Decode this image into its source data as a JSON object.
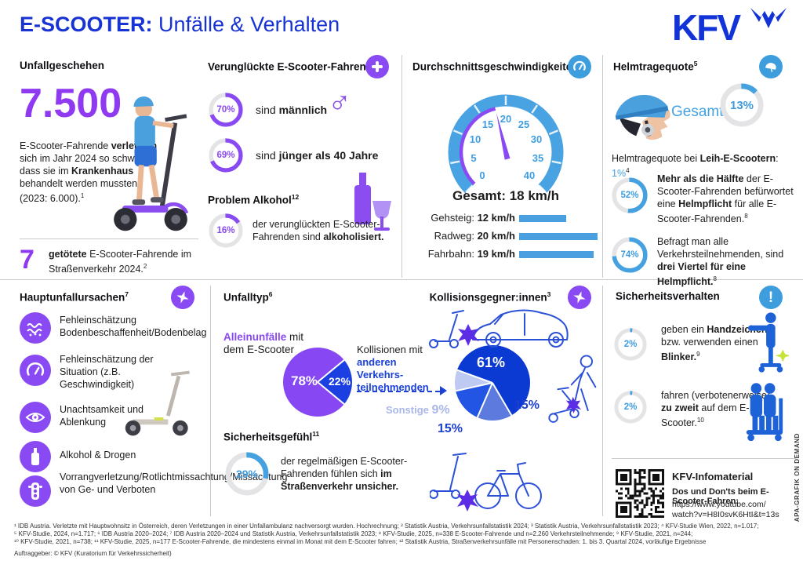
{
  "header": {
    "title_strong": "E-SCOOTER:",
    "title_rest": " Unfälle & Verhalten",
    "logo": "KFV"
  },
  "colors": {
    "brand_blue": "#1733d4",
    "accent_purple": "#8a4af3",
    "accent_sky": "#45a1e0",
    "pie_dark_blue": "#0b3ad2",
    "pie_slate": "#5d7ade",
    "pie_royal": "#2355e4",
    "pie_light": "#bfcaf2"
  },
  "unfallgeschehen": {
    "heading": "Unfallgeschehen",
    "big_number": "7.500",
    "p1": {
      "t1": "E-Scooter-Fahrende ",
      "b1": "verletzten",
      "t2": " sich im Jahr 2024 so schwer, dass sie im ",
      "b2": "Krankenhaus",
      "t3": " behandelt werden mussten (2023: 6.000).",
      "sup": "1"
    },
    "killed": {
      "number": "7",
      "b1": "getötete",
      "t1": " E-Scooter-Fahrende im Straßenverkehr 2024.",
      "sup": "2"
    }
  },
  "verunglueckte": {
    "heading": "Verunglückte E-Scooter-Fahrende",
    "sup": "3",
    "stat_male": {
      "value": 70,
      "label": "70%",
      "t1": "sind ",
      "b1": "männlich"
    },
    "male_symbol": "♂",
    "stat_age": {
      "value": 69,
      "label": "69%",
      "t1": "sind ",
      "b1": "jünger als 40 Jahre"
    },
    "alcohol_heading": "Problem Alkohol",
    "alcohol_sup": "12",
    "stat_alcohol": {
      "value": 16,
      "label": "16%",
      "t1": "der verunglückten E-Scooter-Fahrenden sind ",
      "b1": "alkoholisiert."
    }
  },
  "speeds": {
    "heading": "Durchschnittsgeschwindigkeiten",
    "sup": "4",
    "total_label": "Gesamt: 18 km/h",
    "bars": [
      {
        "name": "Gehsteig: ",
        "value_label": "12 km/h",
        "kmh": 12
      },
      {
        "name": "Radweg: ",
        "value_label": "20 km/h",
        "kmh": 20
      },
      {
        "name": "Fahrbahn: ",
        "value_label": "19 km/h",
        "kmh": 19
      }
    ]
  },
  "helm": {
    "heading": "Helmtragequote",
    "sup": "5",
    "gesamt_label": "Gesamt",
    "stat_gesamt": {
      "value": 13,
      "label": "13%"
    },
    "leih": {
      "t1": "Helmtragequote bei ",
      "b1": "Leih-E-Scootern",
      "t2": ": ",
      "value": "1%",
      "sup": "4"
    },
    "stat_pflicht": {
      "value": 52,
      "label": "52%",
      "b1": "Mehr als die Hälfte",
      "t1": " der E-Scooter-Fahrenden befürwortet eine ",
      "b2": "Helmpflicht",
      "t2": " für alle E-Scooter-Fahrenden.",
      "sup": "8"
    },
    "stat_alle": {
      "value": 74,
      "label": "74%",
      "t1": "Befragt man alle Verkehrsteilnehmenden, sind ",
      "b1": "drei Viertel für eine Helmpflicht.",
      "sup": "8"
    }
  },
  "ursachen": {
    "heading": "Hauptunfallursachen",
    "sup": "7",
    "items": [
      {
        "icon": "road-surface-icon",
        "text": "Fehleinschätzung Bodenbeschaffenheit/Bodenbelag"
      },
      {
        "icon": "speedometer-icon",
        "text": "Fehleinschätzung der Situation (z.B. Geschwindigkeit)"
      },
      {
        "icon": "eye-icon",
        "text": "Unachtsamkeit und Ablenkung"
      },
      {
        "icon": "bottle-icon",
        "text": "Alkohol & Drogen"
      },
      {
        "icon": "traffic-light-icon",
        "text": "Vorrangverletzung/Rotlichtmissachtung/Missachtung von Ge- und Verboten"
      }
    ]
  },
  "unfalltyp": {
    "heading": "Unfalltyp",
    "sup": "6",
    "allein_b": "Alleinunfälle",
    "allein_t": " mit dem E-Scooter",
    "pie_purple_label": "78%",
    "pie_blue_label": "22%",
    "kollision_t1": "Kollisionen mit ",
    "kollision_b1": "anderen Verkehrs-teilnehmenden"
  },
  "kollisionsgegner": {
    "heading": "Kollisionsgegner:innen",
    "sup": "3",
    "label_61": "61%",
    "label_15a": "15%",
    "label_15b": "15%",
    "sonstige_t": "Sonstige ",
    "sonstige_pct": "9%"
  },
  "gefuehl": {
    "heading": "Sicherheitsgefühl",
    "sup": "11",
    "stat": {
      "value": 29,
      "label": "29%",
      "t1": "der regelmäßigen E-Scooter-Fahrenden fühlen sich ",
      "b1": "im Straßenverkehr unsicher."
    }
  },
  "verhalten": {
    "heading": "Sicherheitsverhalten",
    "stat_blinker": {
      "value": 2,
      "label": "2%",
      "t1": "geben ein ",
      "b1": "Handzeichen",
      "t2": " bzw. verwenden einen ",
      "b2": "Blinker.",
      "sup": "9"
    },
    "stat_zwei": {
      "value": 2,
      "label": "2%",
      "t1": "fahren (verbotenerweise) ",
      "b1": "zu zweit",
      "t2": " auf dem E-Scooter.",
      "sup": "10"
    }
  },
  "infomaterial": {
    "heading": "KFV-Infomaterial",
    "line1": "Dos und Don'ts beim E-Scooter-Fahren:",
    "url_line1": "https://www.youtube.com/",
    "url_line2": "watch?v=H8I0svK6HtI&t=13s"
  },
  "footer": {
    "line1": "¹ IDB Austria. Verletzte mit Hauptwohnsitz in Österreich, deren Verletzungen in einer Unfallambulanz nachversorgt wurden. Hochrechnung; ² Statistik Austria, Verkehrsunfallstatistik 2024; ³ Statistik Austria, Verkehrsunfallstatistik 2023; ⁴ KFV-Studie Wien, 2022, n=1.017;",
    "line2": "⁵ KFV-Studie, 2024, n=1.717; ⁶ IDB Austria 2020–2024; ⁷ IDB Austria 2020–2024 und Statistik Austria, Verkehrsunfallstatistik 2023; ⁸ KFV-Studie, 2025, n=338 E-Scooter-Fahrende und n=2.260 Verkehrsteilnehmende; ⁹ KFV-Studie, 2021, n=244;",
    "line3": "¹⁰ KFV-Studie, 2021, n=738; ¹¹ KFV-Studie, 2025, n=177 E-Scooter-Fahrende, die mindestens einmal im Monat mit dem E-Scooter fahren; ¹² Statistik Austria, Straßenverkehrsunfälle mit Personenschaden: 1. bis 3. Quartal 2024, vorläufige Ergebnisse",
    "client": "Auftraggeber: © KFV (Kuratorium für Verkehrssicherheit)",
    "credit": "APA-GRAFIK ON DEMAND"
  },
  "chart_data": [
    {
      "id": "speed-gauge",
      "type": "gauge",
      "title": "Durchschnittsgeschwindigkeiten",
      "min": 0,
      "max": 40,
      "value": 18,
      "unit": "km/h",
      "ticks": [
        0,
        5,
        10,
        15,
        20,
        25,
        30,
        35,
        40
      ],
      "label": "Gesamt: 18 km/h"
    },
    {
      "id": "speed-bars",
      "type": "bar",
      "categories": [
        "Gehsteig",
        "Radweg",
        "Fahrbahn"
      ],
      "values": [
        12,
        20,
        19
      ],
      "unit": "km/h"
    },
    {
      "id": "unfalltyp-pie",
      "type": "pie",
      "start": 50.4,
      "slices": [
        {
          "label": "Kollisionen mit anderen Verkehrsteilnehmenden",
          "value": 22,
          "color": "#1b3fe0"
        },
        {
          "label": "Alleinunfälle mit dem E-Scooter",
          "value": 78,
          "color": "#8748f3"
        }
      ]
    },
    {
      "id": "kollision-pie",
      "type": "pie",
      "start": 149.6,
      "slices": [
        {
          "label": "15%",
          "icon": "pedestrian-icon",
          "value": 15,
          "color": "#5d7ade"
        },
        {
          "label": "15%",
          "icon": "bicycle-icon",
          "value": 15,
          "color": "#2355e4"
        },
        {
          "label": "Sonstige 9%",
          "value": 9,
          "color": "#bfcaf2"
        },
        {
          "label": "61%",
          "icon": "car-icon",
          "value": 61,
          "color": "#0b3ad2"
        }
      ]
    },
    {
      "id": "donut-stats",
      "type": "donut",
      "items": [
        {
          "label": "sind männlich",
          "value": 70
        },
        {
          "label": "sind jünger als 40 Jahre",
          "value": 69
        },
        {
          "label": "alkoholisiert",
          "value": 16
        },
        {
          "label": "Helmtragequote Gesamt",
          "value": 13
        },
        {
          "label": "befürworten Helmpflicht (E-Scooter-Fahrende)",
          "value": 52
        },
        {
          "label": "für Helmpflicht (alle Verkehrsteilnehmenden)",
          "value": 74
        },
        {
          "label": "fühlen sich im Straßenverkehr unsicher",
          "value": 29
        },
        {
          "label": "geben Handzeichen bzw. Blinker",
          "value": 2
        },
        {
          "label": "fahren zu zweit",
          "value": 2
        }
      ]
    }
  ]
}
